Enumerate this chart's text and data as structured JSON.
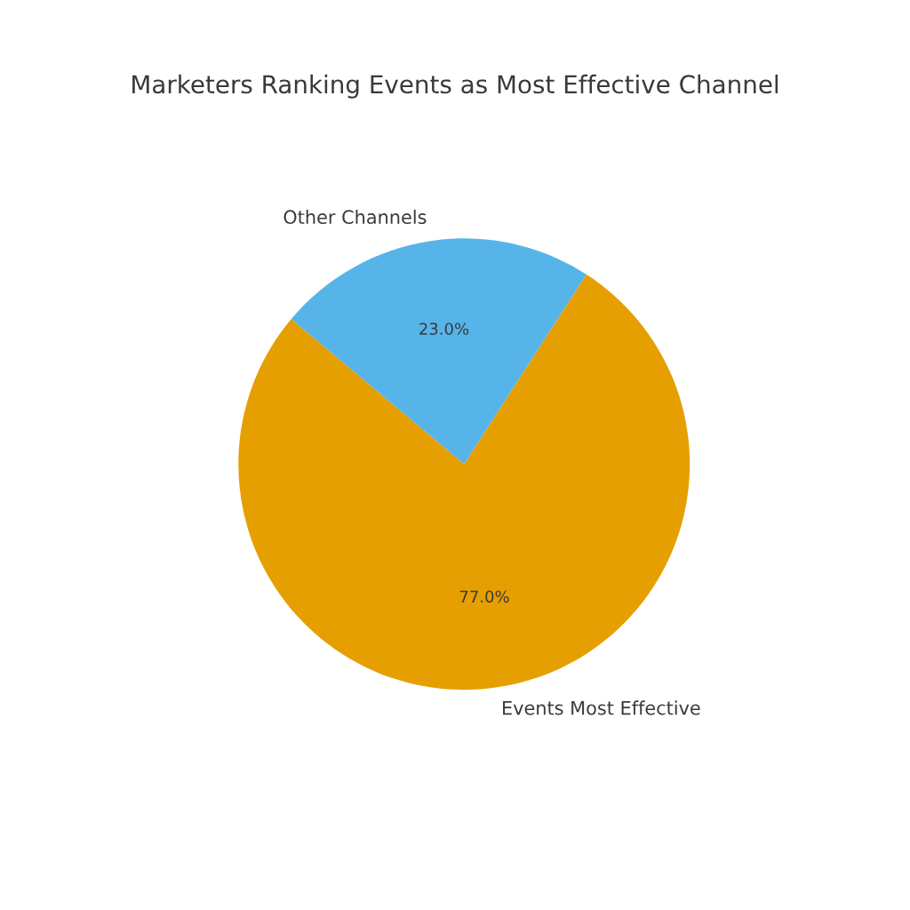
{
  "chart_data": {
    "type": "pie",
    "title": "Marketers Ranking Events as Most Effective Channel",
    "categories": [
      "Events Most Effective",
      "Other Channels"
    ],
    "values": [
      77,
      23
    ],
    "colors": [
      "#e69f00",
      "#56b4e9"
    ],
    "value_labels": [
      "77.0%",
      "23.0%"
    ]
  }
}
